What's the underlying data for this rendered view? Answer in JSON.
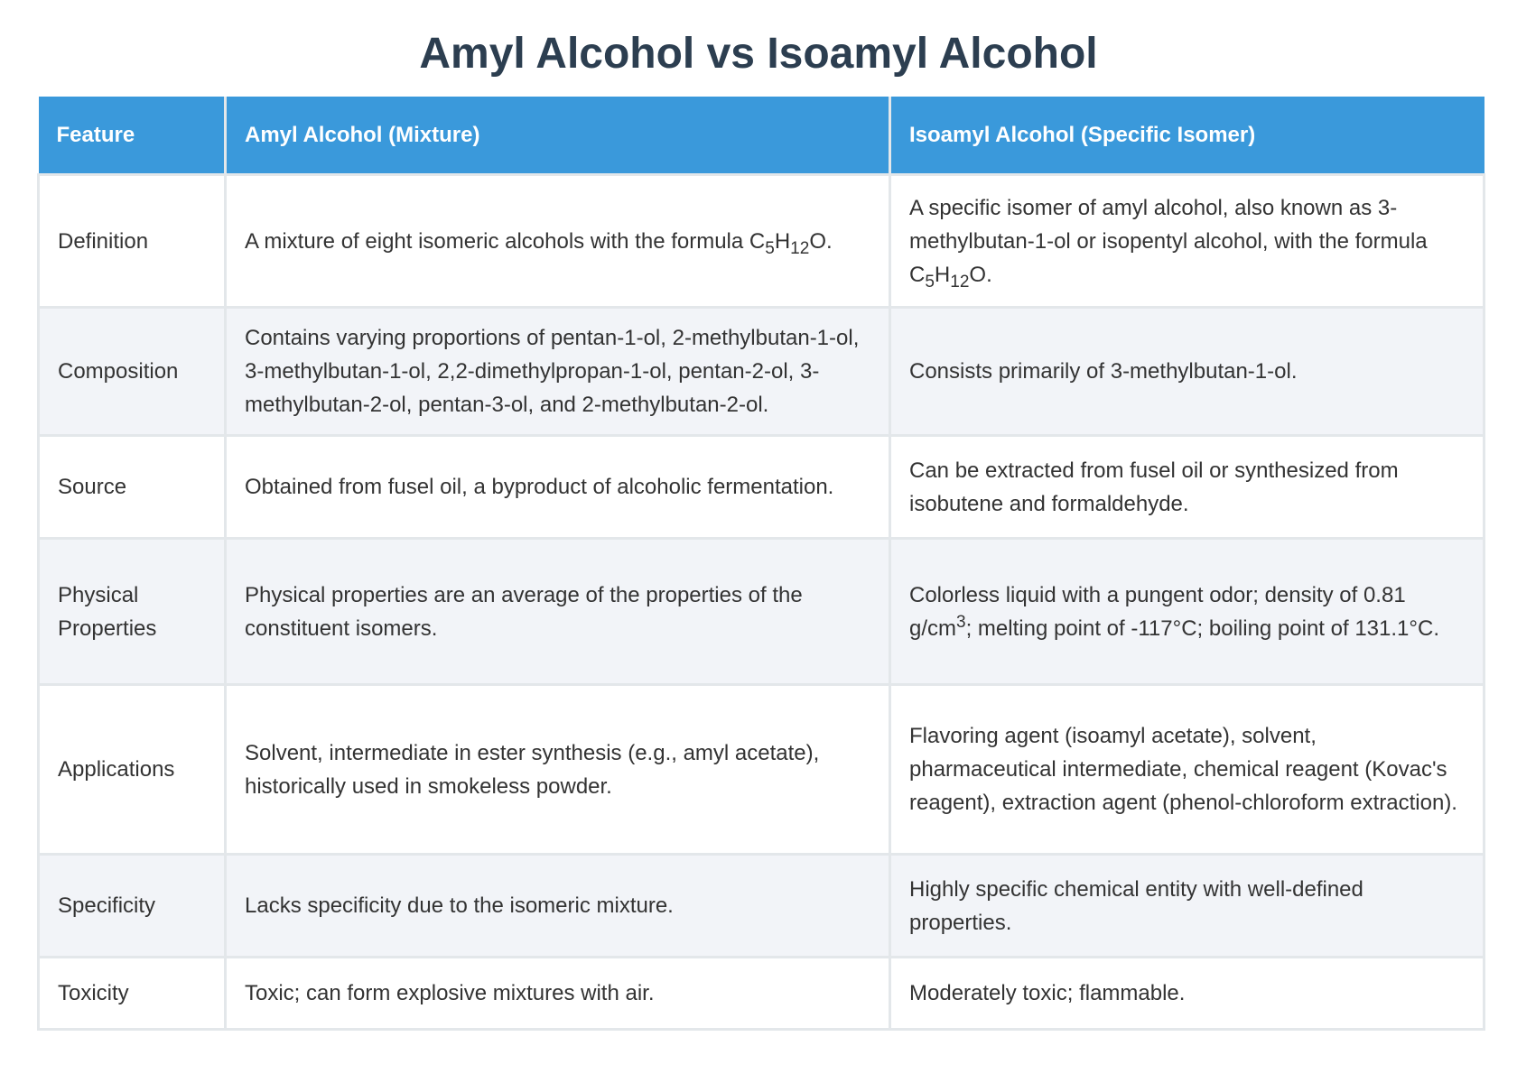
{
  "title": "Amyl Alcohol vs Isoamyl Alcohol",
  "headers": [
    "Feature",
    "Amyl Alcohol (Mixture)",
    "Isoamyl Alcohol (Specific Isomer)"
  ],
  "rows": [
    {
      "feature": "Definition",
      "amyl": {
        "text": "A mixture of eight isomeric alcohols with the formula ",
        "formula": [
          "C",
          "5",
          "H",
          "12",
          "O."
        ]
      },
      "isoamyl": {
        "text": "A specific isomer of amyl alcohol, also known as 3-methylbutan-1-ol or isopentyl alcohol, with the formula ",
        "formula": [
          "C",
          "5",
          "H",
          "12",
          "O."
        ]
      }
    },
    {
      "feature": "Composition",
      "amyl": "Contains varying proportions of pentan-1-ol, 2-methylbutan-1-ol, 3-methylbutan-1-ol, 2,2-dimethylpropan-1-ol, pentan-2-ol, 3-methylbutan-2-ol, pentan-3-ol, and 2-methylbutan-2-ol.",
      "isoamyl": "Consists primarily of 3-methylbutan-1-ol."
    },
    {
      "feature": "Source",
      "amyl": "Obtained from fusel oil, a byproduct of alcoholic fermentation.",
      "isoamyl": "Can be extracted from fusel oil or synthesized from isobutene and formaldehyde."
    },
    {
      "feature": "Physical Properties",
      "amyl": "Physical properties are an average of the properties of the constituent isomers.",
      "isoamyl": {
        "before": "Colorless liquid with a pungent odor; density of 0.81 g/cm",
        "sup": "3",
        "after": "; melting point of -117°C; boiling point of 131.1°C."
      }
    },
    {
      "feature": "Applications",
      "amyl": "Solvent, intermediate in ester synthesis (e.g., amyl acetate), historically used in smokeless powder.",
      "isoamyl": "Flavoring agent (isoamyl acetate), solvent, pharmaceutical intermediate, chemical reagent (Kovac's reagent), extraction agent (phenol-chloroform extraction)."
    },
    {
      "feature": "Specificity",
      "amyl": "Lacks specificity due to the isomeric mixture.",
      "isoamyl": "Highly specific chemical entity with well-defined properties."
    },
    {
      "feature": "Toxicity",
      "amyl": "Toxic; can form explosive mixtures with air.",
      "isoamyl": "Moderately toxic; flammable."
    }
  ]
}
